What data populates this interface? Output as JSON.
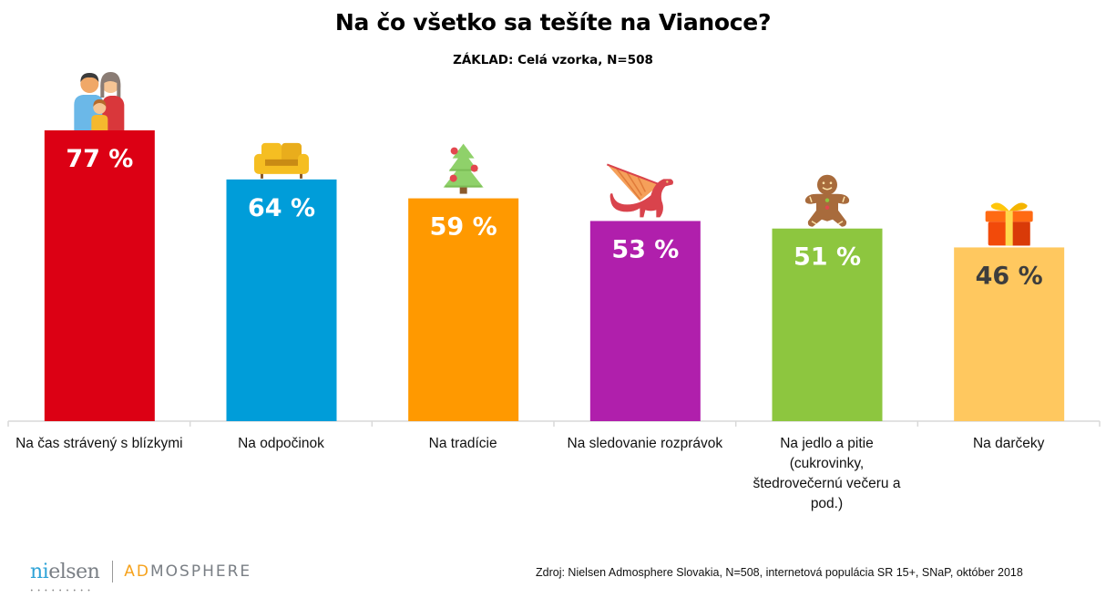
{
  "header": {
    "title": "Na čo všetko sa tešíte na Vianoce?",
    "subtitle": "ZÁKLAD: Celá vzorka, N=508"
  },
  "chart_data": {
    "type": "bar",
    "title": "Na čo všetko sa tešíte na Vianoce?",
    "subtitle": "ZÁKLAD: Celá vzorka, N=508",
    "xlabel": "",
    "ylabel": "",
    "ylim": [
      0,
      100
    ],
    "grid": false,
    "legend": "none",
    "value_suffix": " %",
    "categories": [
      "Na čas strávený s blízkymi",
      "Na odpočinok",
      "Na tradície",
      "Na sledovanie rozprávok",
      "Na jedlo a pitie (cukrovinky, štedrovečernú večeru a pod.)",
      "Na darčeky"
    ],
    "category_lines": [
      [
        "Na čas strávený s blízkymi"
      ],
      [
        "Na odpočinok"
      ],
      [
        "Na tradície"
      ],
      [
        "Na sledovanie rozprávok"
      ],
      [
        "Na jedlo a pitie",
        "(cukrovinky,",
        "štedrovečernú večeru a",
        "pod.)"
      ],
      [
        "Na darčeky"
      ]
    ],
    "values": [
      77,
      64,
      59,
      53,
      51,
      46
    ],
    "colors": [
      "#dc0014",
      "#009dd9",
      "#ff9900",
      "#b01fac",
      "#8dc63f",
      "#ffc85f"
    ],
    "label_colors": [
      "#ffffff",
      "#ffffff",
      "#ffffff",
      "#ffffff",
      "#ffffff",
      "#3d3d3d"
    ],
    "icons": [
      "family-icon",
      "sofa-icon",
      "christmas-tree-icon",
      "dragon-icon",
      "gingerbread-man-icon",
      "gift-icon"
    ]
  },
  "footer": {
    "source": "Zdroj: Nielsen Admosphere Slovakia, N=508, internetová populácia SR 15+, SNaP, október 2018",
    "logo_nielsen_accent": "ni",
    "logo_nielsen_rest": "elsen",
    "logo_admosphere_accent": "AD",
    "logo_admosphere_rest": "MOSPHERE",
    "logo_dots": "•••••••••"
  }
}
